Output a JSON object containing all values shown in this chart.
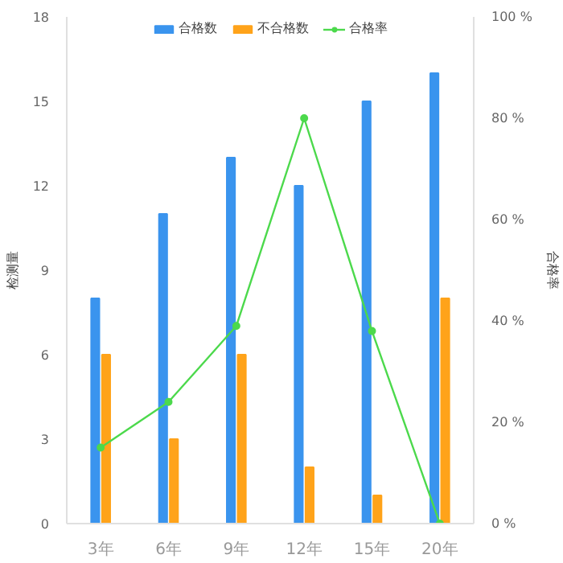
{
  "chart_data": {
    "type": "bar",
    "categories": [
      "3年",
      "6年",
      "9年",
      "12年",
      "15年",
      "20年"
    ],
    "ylabel": "检测量",
    "y2label": "合格率",
    "series": [
      {
        "name": "合格数",
        "color": "#3a94ee",
        "values": [
          8,
          11,
          13,
          12,
          15,
          16
        ]
      },
      {
        "name": "不合格数",
        "color": "#ffa31a",
        "values": [
          6,
          3,
          6,
          2,
          1,
          8
        ]
      },
      {
        "name": "合格率",
        "type": "line",
        "axis": "y2",
        "color": "#4cd94c",
        "marker": "circle",
        "values": [
          15,
          24,
          39,
          80,
          38,
          0
        ]
      }
    ],
    "ylim": [
      0,
      18
    ],
    "yticks": [
      0,
      3,
      6,
      9,
      12,
      15,
      18
    ],
    "y2lim": [
      0,
      100
    ],
    "y2ticks": [
      {
        "value": 0,
        "label": "0 %"
      },
      {
        "value": 20,
        "label": "20 %"
      },
      {
        "value": 40,
        "label": "40 %"
      },
      {
        "value": 60,
        "label": "60 %"
      },
      {
        "value": 80,
        "label": "80 %"
      },
      {
        "value": 100,
        "label": "100 %"
      }
    ],
    "legend": "top",
    "grid": false
  }
}
